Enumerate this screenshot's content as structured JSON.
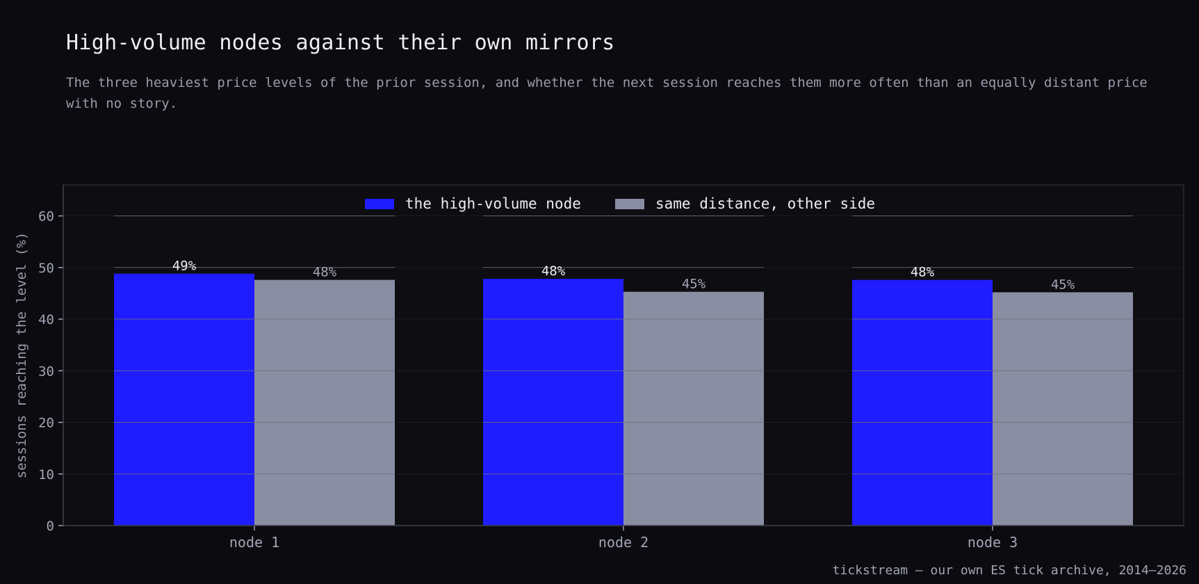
{
  "header": {
    "title": "High-volume nodes against their own mirrors",
    "subtitle": "The three heaviest price levels of the prior session, and whether the next session reaches them more often than an equally distant price with no story."
  },
  "footer": {
    "source": "tickstream — our own ES tick archive, 2014–2026"
  },
  "colors": {
    "background": "#0b0b10",
    "node": "#1f1cff",
    "mirror": "#8a8ea3",
    "grid": "#6c7080"
  },
  "chart_data": {
    "type": "bar",
    "categories": [
      "node 1",
      "node 2",
      "node 3"
    ],
    "series": [
      {
        "name": "the high-volume node",
        "values": [
          48.8,
          47.8,
          47.6
        ],
        "labels": [
          "49%",
          "48%",
          "48%"
        ]
      },
      {
        "name": "same distance, other side",
        "values": [
          47.6,
          45.3,
          45.2
        ],
        "labels": [
          "48%",
          "45%",
          "45%"
        ]
      }
    ],
    "ylabel": "sessions reaching the level (%)",
    "xlabel": "",
    "ylim": [
      0,
      66
    ],
    "yticks": [
      0,
      10,
      20,
      30,
      40,
      50,
      60
    ],
    "grid": true,
    "legend_position": "top-center"
  }
}
